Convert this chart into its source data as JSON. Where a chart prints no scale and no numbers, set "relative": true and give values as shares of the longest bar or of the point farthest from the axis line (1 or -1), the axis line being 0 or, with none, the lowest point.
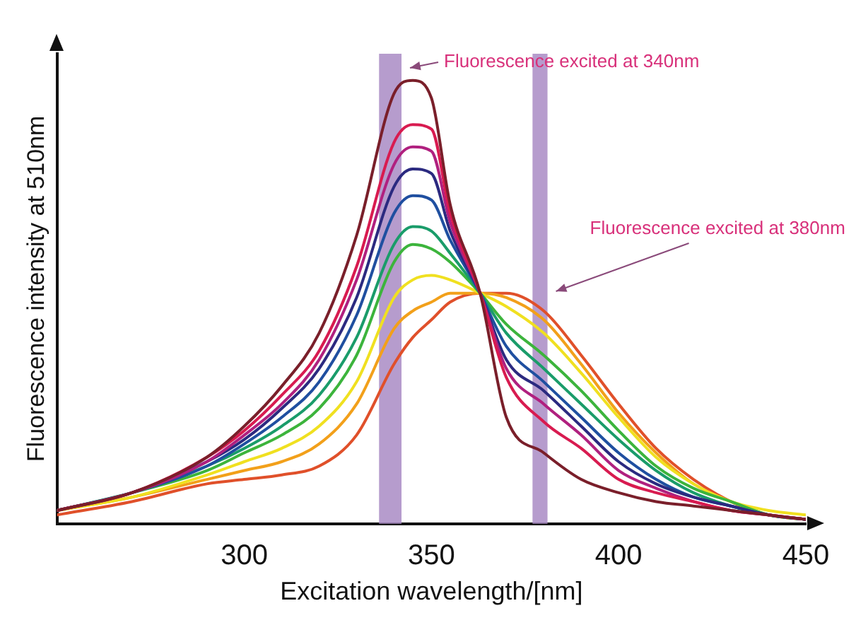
{
  "chart_data": {
    "type": "line",
    "xlabel": "Excitation wavelength/[nm]",
    "ylabel": "Fluorescence intensity at 510nm",
    "relative": true,
    "xlim": [
      250,
      450
    ],
    "xticks": [
      300,
      350,
      400,
      450
    ],
    "grid": false,
    "legend": false,
    "marker": "none",
    "line_style": "solid",
    "x": [
      250,
      270,
      290,
      300,
      310,
      320,
      330,
      340,
      345,
      350,
      355,
      363,
      370,
      380,
      390,
      400,
      410,
      420,
      430,
      440,
      450
    ],
    "series": [
      {
        "color": "#7a1f2a",
        "values": [
          0.03,
          0.07,
          0.15,
          0.22,
          0.31,
          0.43,
          0.65,
          0.97,
          1.0,
          0.96,
          0.72,
          0.52,
          0.24,
          0.16,
          0.1,
          0.07,
          0.05,
          0.04,
          0.03,
          0.02,
          0.01
        ]
      },
      {
        "color": "#d81b50",
        "values": [
          0.03,
          0.07,
          0.15,
          0.21,
          0.29,
          0.39,
          0.58,
          0.86,
          0.9,
          0.89,
          0.7,
          0.52,
          0.33,
          0.23,
          0.17,
          0.1,
          0.07,
          0.05,
          0.03,
          0.02,
          0.01
        ]
      },
      {
        "color": "#b0207f",
        "values": [
          0.03,
          0.07,
          0.14,
          0.2,
          0.27,
          0.37,
          0.55,
          0.81,
          0.85,
          0.84,
          0.68,
          0.52,
          0.35,
          0.27,
          0.2,
          0.12,
          0.08,
          0.05,
          0.03,
          0.02,
          0.01
        ]
      },
      {
        "color": "#2b2a80",
        "values": [
          0.03,
          0.07,
          0.14,
          0.19,
          0.26,
          0.35,
          0.51,
          0.76,
          0.8,
          0.79,
          0.66,
          0.52,
          0.37,
          0.3,
          0.22,
          0.14,
          0.09,
          0.06,
          0.04,
          0.02,
          0.01
        ]
      },
      {
        "color": "#1f4fa0",
        "values": [
          0.03,
          0.07,
          0.13,
          0.18,
          0.24,
          0.32,
          0.47,
          0.7,
          0.74,
          0.73,
          0.64,
          0.52,
          0.4,
          0.32,
          0.24,
          0.16,
          0.1,
          0.06,
          0.04,
          0.02,
          0.01
        ]
      },
      {
        "color": "#1a9c6a",
        "values": [
          0.03,
          0.07,
          0.13,
          0.17,
          0.22,
          0.29,
          0.42,
          0.63,
          0.67,
          0.66,
          0.61,
          0.52,
          0.43,
          0.35,
          0.27,
          0.19,
          0.12,
          0.07,
          0.04,
          0.02,
          0.01
        ]
      },
      {
        "color": "#3cb43c",
        "values": [
          0.03,
          0.07,
          0.12,
          0.16,
          0.2,
          0.26,
          0.38,
          0.59,
          0.63,
          0.62,
          0.59,
          0.52,
          0.45,
          0.38,
          0.3,
          0.21,
          0.13,
          0.08,
          0.05,
          0.02,
          0.01
        ]
      },
      {
        "color": "#f0e020",
        "values": [
          0.03,
          0.06,
          0.11,
          0.14,
          0.17,
          0.22,
          0.32,
          0.51,
          0.55,
          0.56,
          0.55,
          0.52,
          0.49,
          0.43,
          0.34,
          0.24,
          0.15,
          0.09,
          0.05,
          0.03,
          0.02
        ]
      },
      {
        "color": "#f2a01a",
        "values": [
          0.03,
          0.06,
          0.1,
          0.12,
          0.14,
          0.18,
          0.27,
          0.44,
          0.48,
          0.5,
          0.52,
          0.52,
          0.51,
          0.46,
          0.36,
          0.25,
          0.16,
          0.09,
          0.05,
          0.02,
          0.01
        ]
      },
      {
        "color": "#e0502a",
        "values": [
          0.02,
          0.05,
          0.09,
          0.1,
          0.11,
          0.13,
          0.2,
          0.36,
          0.42,
          0.46,
          0.5,
          0.52,
          0.52,
          0.48,
          0.38,
          0.27,
          0.17,
          0.1,
          0.05,
          0.02,
          0.01
        ]
      }
    ],
    "bands": [
      {
        "axis": "x",
        "from": 336,
        "to": 342,
        "label": "Fluorescence excited at 340nm",
        "color": "#a98bc4"
      },
      {
        "axis": "x",
        "from": 377,
        "to": 381,
        "label": "Fluorescence excited at 380nm",
        "color": "#a98bc4"
      }
    ]
  }
}
